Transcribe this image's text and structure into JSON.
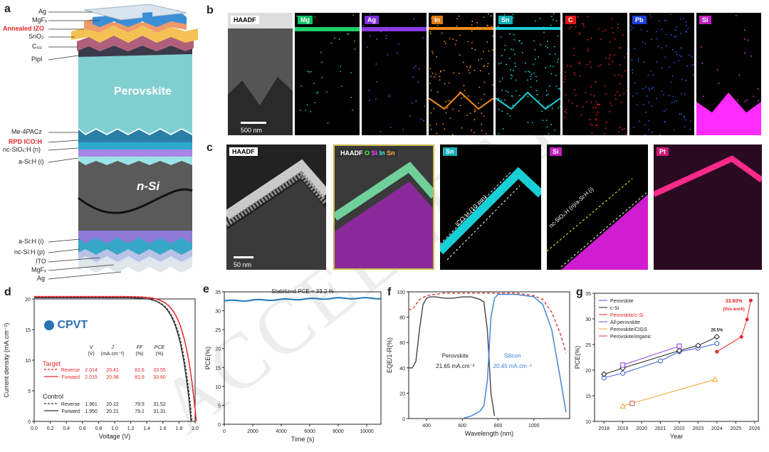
{
  "panels": {
    "a": "a",
    "b": "b",
    "c": "c",
    "d": "d",
    "e": "e",
    "f": "f",
    "g": "g"
  },
  "stack": {
    "top_labels": [
      "Ag",
      "MgFₓ",
      "Annealed IZO",
      "SnO₂",
      "C₆₀",
      "PipI"
    ],
    "perovskite": "Perovskite",
    "mid_labels": [
      "Me-4PACz",
      "RPD ICO:H",
      "nc-SiOₓ:H (n)",
      "a-Si:H (i)"
    ],
    "nsi": "n-Si",
    "bottom_labels": [
      "a-Si:H (i)",
      "nc-Si:H (p)",
      "ITO",
      "MgFₓ",
      "Ag"
    ],
    "red_labels": [
      "Annealed IZO",
      "RPD ICO:H"
    ]
  },
  "tem_b": {
    "tiles": [
      {
        "name": "HAADF",
        "color": "#ffffff",
        "text": "#000",
        "map": "#888"
      },
      {
        "name": "Mg",
        "color": "#10c060",
        "text": "#fff",
        "map": "#1fcf6a"
      },
      {
        "name": "Ag",
        "color": "#7b2fd6",
        "text": "#fff",
        "map": "#8a3be6"
      },
      {
        "name": "In",
        "color": "#e07a10",
        "text": "#fff",
        "map": "#f08a1a"
      },
      {
        "name": "Sn",
        "color": "#10b0b8",
        "text": "#fff",
        "map": "#19cfd6"
      },
      {
        "name": "C",
        "color": "#e01818",
        "text": "#fff",
        "map": "#f02020"
      },
      {
        "name": "Pb",
        "color": "#1f3fd8",
        "text": "#fff",
        "map": "#2f55f0"
      },
      {
        "name": "Si",
        "color": "#c21ec2",
        "text": "#fff",
        "map": "#ff2bff"
      }
    ],
    "scalebar": "500 nm"
  },
  "tem_c": {
    "tiles": [
      "HAADF",
      "HAADF",
      "Sn",
      "Si",
      "Pt"
    ],
    "overlay_tags": [
      "HAADF",
      "O",
      "Si",
      "In",
      "Sn"
    ],
    "ico_text": "ICO:H (10 nm)",
    "si_text": "nc-SiOₓ:H (n)/a-Si:H (i)",
    "scalebar": "50 nm"
  },
  "watermark": "ACCELERATED",
  "chart_data": [
    {
      "type": "line",
      "panel": "d",
      "xlabel": "Voltage (V)",
      "ylabel": "Current density (mA.cm⁻²)",
      "xlim": [
        0.0,
        2.0
      ],
      "ylim": [
        0,
        20
      ],
      "xticks": [
        "0.0",
        "0.2",
        "0.4",
        "0.6",
        "0.8",
        "1.0",
        "1.2",
        "1.4",
        "1.6",
        "1.8",
        "2.0"
      ],
      "yticks": [
        "0",
        "5",
        "10",
        "15",
        "20"
      ],
      "logo": "CPVT",
      "table": {
        "headers": [
          "Vₒᶜ (V)",
          "Jₛᶜ (mA.cm⁻²)",
          "FF (%)",
          "PCE (%)"
        ],
        "hdr1": [
          "V",
          "J",
          "FF",
          "PCE"
        ],
        "hdr2": [
          "(V)",
          "(mA.cm⁻²)",
          "(%)",
          "(%)"
        ],
        "target_label": "Target",
        "control_label": "Control",
        "rows": [
          {
            "group": "Target",
            "scan": "Reverse",
            "voc": "2.014",
            "jsc": "20.41",
            "ff": "81.6",
            "pce": "33.55"
          },
          {
            "group": "Target",
            "scan": "Forward",
            "voc": "2.015",
            "jsc": "20.36",
            "ff": "81.9",
            "pce": "33.60"
          },
          {
            "group": "Control",
            "scan": "Reverse",
            "voc": "1.961",
            "jsc": "20.22",
            "ff": "79.5",
            "pce": "31.52"
          },
          {
            "group": "Control",
            "scan": "Forward",
            "voc": "1.950",
            "jsc": "20.21",
            "ff": "79.1",
            "pce": "31.31"
          }
        ]
      },
      "series": [
        {
          "name": "Target Reverse",
          "color": "#e8262b",
          "dash": true,
          "voc": 2.014,
          "jsc": 20.41
        },
        {
          "name": "Target Forward",
          "color": "#e8262b",
          "dash": false,
          "voc": 2.015,
          "jsc": 20.36
        },
        {
          "name": "Control Reverse",
          "color": "#333333",
          "dash": true,
          "voc": 1.961,
          "jsc": 20.22
        },
        {
          "name": "Control Forward",
          "color": "#333333",
          "dash": false,
          "voc": 1.95,
          "jsc": 20.21
        }
      ]
    },
    {
      "type": "line",
      "panel": "e",
      "xlabel": "Time (s)",
      "ylabel": "PCE(%)",
      "xlim": [
        0,
        11000
      ],
      "ylim": [
        0,
        35
      ],
      "xticks": [
        "0",
        "2000",
        "4000",
        "6000",
        "8000",
        "10000"
      ],
      "yticks": [
        "0",
        "5",
        "10",
        "15",
        "20",
        "25",
        "30",
        "35"
      ],
      "annotation": "Stabilized PCE = 33.2 %",
      "series": [
        {
          "name": "Stabilized PCE",
          "color": "#1f77b4",
          "x": [
            0,
            11000
          ],
          "y": [
            32.6,
            33.3
          ]
        }
      ]
    },
    {
      "type": "line",
      "panel": "f",
      "xlabel": "Wavelength (nm)",
      "ylabel": "EQE/1-R(%)",
      "xlim": [
        300,
        1200
      ],
      "ylim": [
        0,
        100
      ],
      "xticks": [
        "400",
        "600",
        "800",
        "1000"
      ],
      "yticks": [
        "0",
        "20",
        "40",
        "60",
        "80",
        "100"
      ],
      "labels": {
        "perovskite": "Perovskite",
        "perovskite_j": "21.65 mA.cm⁻²",
        "silicon": "Silicon",
        "silicon_j": "20.45 mA.cm⁻²"
      },
      "series": [
        {
          "name": "Perovskite",
          "color": "#444444",
          "x": [
            300,
            320,
            340,
            360,
            380,
            400,
            420,
            450,
            500,
            550,
            600,
            650,
            700,
            720,
            740,
            760,
            780
          ],
          "y": [
            40,
            40,
            45,
            70,
            90,
            95,
            96,
            96,
            95,
            95,
            96,
            96,
            94,
            92,
            70,
            20,
            2
          ]
        },
        {
          "name": "Silicon",
          "color": "#3a7dd8",
          "x": [
            600,
            650,
            700,
            720,
            740,
            760,
            780,
            800,
            850,
            900,
            950,
            1000,
            1050,
            1100,
            1150,
            1180
          ],
          "y": [
            0,
            2,
            6,
            10,
            30,
            80,
            95,
            98,
            98,
            98,
            97,
            96,
            90,
            70,
            30,
            5
          ]
        },
        {
          "name": "1-R",
          "color": "#d63a3a",
          "dash": true,
          "x": [
            300,
            320,
            360,
            400,
            450,
            500,
            600,
            700,
            800,
            900,
            1000,
            1050,
            1100,
            1150,
            1180
          ],
          "y": [
            86,
            86,
            94,
            97,
            98,
            99,
            99,
            99,
            99,
            99,
            97,
            94,
            84,
            66,
            52
          ]
        }
      ]
    },
    {
      "type": "scatter",
      "panel": "g",
      "xlabel": "Year",
      "ylabel": "PCE(%)",
      "xlim": [
        2017.5,
        2026.2
      ],
      "ylim": [
        10,
        35
      ],
      "xticks": [
        "2018",
        "2019",
        "2020",
        "2021",
        "2022",
        "2023",
        "2024",
        "2025",
        "2026"
      ],
      "yticks": [
        "10",
        "15",
        "20",
        "25",
        "30",
        "35"
      ],
      "annotations": [
        {
          "text": "33.60%"
        },
        {
          "text": "(this work)"
        },
        {
          "text": "26.5%"
        }
      ],
      "series": [
        {
          "name": "Perovskite",
          "color": "#3b5bd6",
          "marker": "circle",
          "x": [
            2018,
            2019,
            2021,
            2022,
            2023,
            2024
          ],
          "y": [
            18.5,
            19.4,
            21.8,
            23.6,
            24.3,
            25.2
          ]
        },
        {
          "name": "c-Si",
          "color": "#222222",
          "marker": "diamond",
          "x": [
            2018,
            2019,
            2022,
            2023,
            2024
          ],
          "y": [
            19.2,
            20.4,
            23.8,
            24.8,
            26.5
          ]
        },
        {
          "name": "Perovskite/c-Si",
          "color": "#e8262b",
          "marker": "star",
          "x": [
            2024,
            2025.3,
            2025.6,
            2025.8
          ],
          "y": [
            23.6,
            26.5,
            29.9,
            33.6
          ]
        },
        {
          "name": "All-perovskite",
          "color": "#8a3be6",
          "marker": "square-cross",
          "x": [
            2019,
            2022
          ],
          "y": [
            21.0,
            24.7
          ]
        },
        {
          "name": "Perovskite/CIGS",
          "color": "#f0a030",
          "marker": "triangle",
          "x": [
            2019,
            2023.9
          ],
          "y": [
            13.0,
            18.2
          ]
        },
        {
          "name": "Perovskite/organic",
          "color": "#c44a4a",
          "marker": "square-cross",
          "x": [
            2019.5
          ],
          "y": [
            13.5
          ]
        }
      ]
    }
  ]
}
